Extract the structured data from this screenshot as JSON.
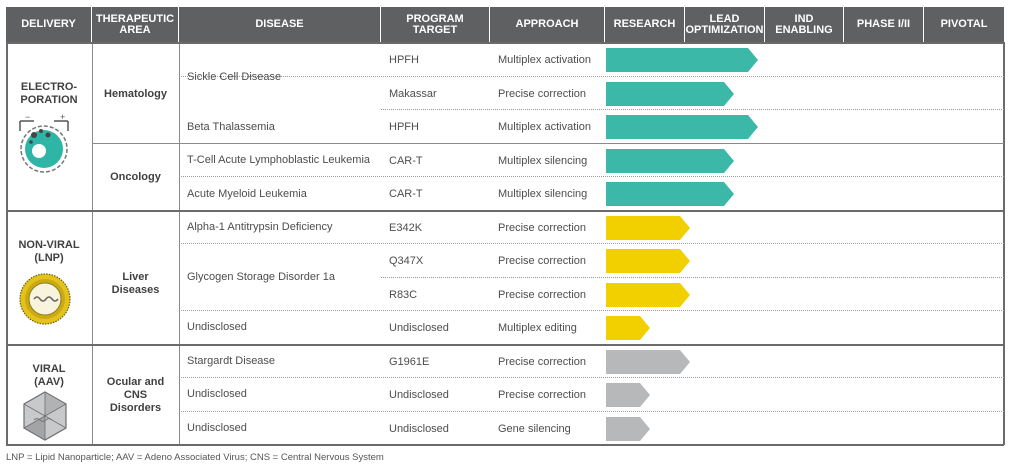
{
  "headers": {
    "delivery": "DELIVERY",
    "therapeutic_area": [
      "THERAPEUTIC",
      "AREA"
    ],
    "disease": "DISEASE",
    "program_target": [
      "PROGRAM",
      "TARGET"
    ],
    "approach": "APPROACH",
    "research": "RESEARCH",
    "lead_optimization": [
      "LEAD",
      "OPTIMIZATION"
    ],
    "ind_enabling": [
      "IND",
      "ENABLING"
    ],
    "phase": "PHASE I/II",
    "pivotal": "PIVOTAL"
  },
  "delivery": {
    "electroporation": [
      "ELECTRO-",
      "PORATION"
    ],
    "electroporation_signs": {
      "minus": "−",
      "plus": "+"
    },
    "non_viral": [
      "NON-VIRAL",
      "(LNP)"
    ],
    "viral": [
      "VIRAL",
      "(AAV)"
    ]
  },
  "areas": {
    "hematology": "Hematology",
    "oncology": "Oncology",
    "liver": [
      "Liver",
      "Diseases"
    ],
    "ocular": [
      "Ocular and",
      "CNS",
      "Disorders"
    ]
  },
  "diseases": {
    "scd": "Sickle Cell Disease",
    "beta": "Beta Thalassemia",
    "tall": "T-Cell Acute Lymphoblastic Leukemia",
    "aml": "Acute Myeloid Leukemia",
    "a1at": "Alpha-1 Antitrypsin Deficiency",
    "gsd": "Glycogen Storage Disorder 1a",
    "undisclosed_liver": "Undisclosed",
    "stargardt": "Stargardt Disease",
    "undisclosed_viral_1": "Undisclosed",
    "undisclosed_viral_2": "Undisclosed"
  },
  "rows": [
    {
      "target": "HPFH",
      "approach": "Multiplex activation",
      "stage": "Lead Optimization",
      "progress": 1.9,
      "color": "#3bb8a8"
    },
    {
      "target": "Makassar",
      "approach": "Precise correction",
      "stage": "Lead Optimization",
      "progress": 1.6,
      "color": "#3bb8a8"
    },
    {
      "target": "HPFH",
      "approach": "Multiplex activation",
      "stage": "Lead Optimization",
      "progress": 1.9,
      "color": "#3bb8a8"
    },
    {
      "target": "CAR-T",
      "approach": "Multiplex silencing",
      "stage": "Lead Optimization",
      "progress": 1.6,
      "color": "#3bb8a8"
    },
    {
      "target": "CAR-T",
      "approach": "Multiplex silencing",
      "stage": "Lead Optimization",
      "progress": 1.6,
      "color": "#3bb8a8"
    },
    {
      "target": "E342K",
      "approach": "Precise correction",
      "stage": "Research",
      "progress": 1.05,
      "color": "#f2d000"
    },
    {
      "target": "Q347X",
      "approach": "Precise correction",
      "stage": "Research",
      "progress": 1.05,
      "color": "#f2d000"
    },
    {
      "target": "R83C",
      "approach": "Precise correction",
      "stage": "Research",
      "progress": 1.05,
      "color": "#f2d000"
    },
    {
      "target": "Undisclosed",
      "approach": "Multiplex editing",
      "stage": "Research",
      "progress": 0.55,
      "color": "#f2d000"
    },
    {
      "target": "G1961E",
      "approach": "Precise correction",
      "stage": "Research",
      "progress": 1.05,
      "color": "#b7b8ba"
    },
    {
      "target": "Undisclosed",
      "approach": "Precise correction",
      "stage": "Research",
      "progress": 0.55,
      "color": "#b7b8ba"
    },
    {
      "target": "Undisclosed",
      "approach": "Gene silencing",
      "stage": "Research",
      "progress": 0.55,
      "color": "#b7b8ba"
    }
  ],
  "footnote": "LNP = Lipid Nanoparticle; AAV = Adeno Associated Virus; CNS = Central Nervous System"
}
